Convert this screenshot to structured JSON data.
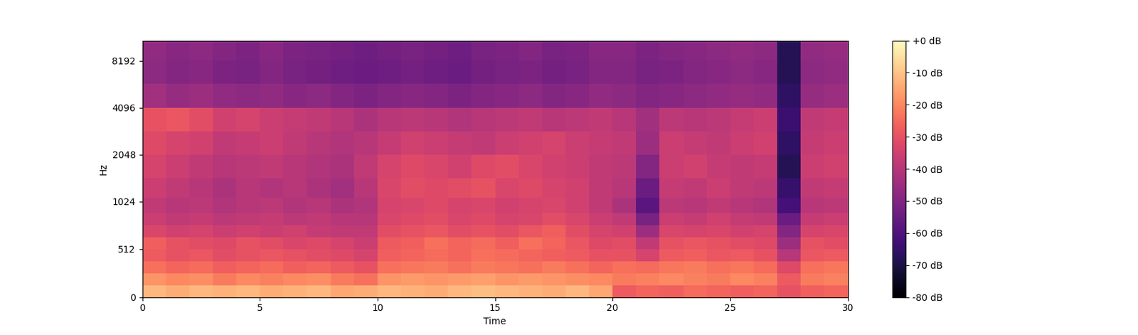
{
  "chart_data": {
    "type": "heatmap",
    "x_label": "Time",
    "y_label": "Hz",
    "x": [
      0.5,
      1.5,
      2.5,
      3.5,
      4.5,
      5.5,
      6.5,
      7.5,
      8.5,
      9.5,
      10.5,
      11.5,
      12.5,
      13.5,
      14.5,
      15.5,
      16.5,
      17.5,
      18.5,
      19.5,
      20.5,
      21.5,
      22.5,
      23.5,
      24.5,
      25.5,
      26.5,
      27.5,
      28.5,
      29.5
    ],
    "y": [
      64,
      192,
      320,
      448,
      576,
      704,
      832,
      960,
      1200,
      1700,
      2400,
      3400,
      4800,
      6800,
      9600
    ],
    "values": [
      [
        -12,
        -14,
        -12,
        -13,
        -12,
        -14,
        -13,
        -12,
        -15,
        -14,
        -12,
        -13,
        -14,
        -12,
        -11,
        -12,
        -13,
        -14,
        -12,
        -15,
        -28,
        -26,
        -27,
        -25,
        -26,
        -27,
        -26,
        -30,
        -27,
        -26
      ],
      [
        -18,
        -20,
        -19,
        -22,
        -20,
        -21,
        -20,
        -19,
        -22,
        -24,
        -18,
        -17,
        -18,
        -17,
        -16,
        -18,
        -17,
        -18,
        -19,
        -20,
        -22,
        -21,
        -20,
        -21,
        -22,
        -20,
        -21,
        -28,
        -22,
        -21
      ],
      [
        -24,
        -26,
        -25,
        -27,
        -26,
        -25,
        -27,
        -26,
        -28,
        -30,
        -24,
        -23,
        -22,
        -24,
        -22,
        -23,
        -24,
        -22,
        -24,
        -26,
        -24,
        -25,
        -23,
        -22,
        -24,
        -23,
        -25,
        -32,
        -24,
        -23
      ],
      [
        -28,
        -30,
        -29,
        -31,
        -30,
        -29,
        -30,
        -31,
        -32,
        -34,
        -27,
        -26,
        -25,
        -26,
        -24,
        -25,
        -26,
        -27,
        -28,
        -30,
        -30,
        -34,
        -28,
        -27,
        -29,
        -28,
        -30,
        -40,
        -29,
        -28
      ],
      [
        -27,
        -30,
        -31,
        -32,
        -30,
        -31,
        -33,
        -32,
        -34,
        -36,
        -28,
        -27,
        -24,
        -26,
        -25,
        -27,
        -24,
        -26,
        -29,
        -32,
        -31,
        -38,
        -30,
        -29,
        -30,
        -31,
        -32,
        -45,
        -30,
        -31
      ],
      [
        -33,
        -35,
        -34,
        -36,
        -35,
        -36,
        -35,
        -37,
        -38,
        -38,
        -31,
        -30,
        -29,
        -31,
        -30,
        -31,
        -29,
        -27,
        -31,
        -34,
        -35,
        -45,
        -33,
        -34,
        -33,
        -35,
        -34,
        -50,
        -34,
        -33
      ],
      [
        -36,
        -38,
        -37,
        -39,
        -38,
        -37,
        -39,
        -38,
        -40,
        -40,
        -33,
        -32,
        -31,
        -33,
        -32,
        -34,
        -33,
        -31,
        -33,
        -36,
        -38,
        -52,
        -36,
        -37,
        -35,
        -37,
        -38,
        -55,
        -37,
        -36
      ],
      [
        -38,
        -40,
        -39,
        -41,
        -40,
        -39,
        -41,
        -40,
        -42,
        -41,
        -34,
        -33,
        -32,
        -34,
        -33,
        -35,
        -34,
        -33,
        -35,
        -38,
        -42,
        -58,
        -39,
        -40,
        -38,
        -40,
        -41,
        -62,
        -40,
        -39
      ],
      [
        -36,
        -38,
        -40,
        -42,
        -40,
        -41,
        -40,
        -42,
        -44,
        -40,
        -33,
        -31,
        -32,
        -31,
        -30,
        -33,
        -32,
        -34,
        -35,
        -38,
        -40,
        -55,
        -37,
        -38,
        -36,
        -38,
        -39,
        -65,
        -38,
        -37
      ],
      [
        -34,
        -36,
        -38,
        -40,
        -39,
        -38,
        -40,
        -41,
        -42,
        -38,
        -34,
        -32,
        -33,
        -35,
        -32,
        -31,
        -33,
        -35,
        -36,
        -38,
        -39,
        -50,
        -36,
        -35,
        -37,
        -38,
        -37,
        -68,
        -36,
        -35
      ],
      [
        -32,
        -34,
        -35,
        -38,
        -37,
        -36,
        -38,
        -40,
        -41,
        -40,
        -37,
        -35,
        -36,
        -37,
        -38,
        -36,
        -35,
        -34,
        -36,
        -37,
        -38,
        -45,
        -36,
        -37,
        -38,
        -36,
        -35,
        -66,
        -37,
        -36
      ],
      [
        -30,
        -29,
        -31,
        -35,
        -34,
        -36,
        -37,
        -38,
        -40,
        -42,
        -40,
        -39,
        -40,
        -41,
        -40,
        -39,
        -38,
        -40,
        -39,
        -38,
        -40,
        -44,
        -39,
        -40,
        -39,
        -37,
        -36,
        -64,
        -38,
        -37
      ],
      [
        -44,
        -46,
        -45,
        -47,
        -48,
        -47,
        -49,
        -48,
        -50,
        -51,
        -50,
        -49,
        -50,
        -51,
        -50,
        -49,
        -48,
        -50,
        -49,
        -47,
        -48,
        -50,
        -49,
        -48,
        -47,
        -46,
        -47,
        -66,
        -46,
        -45
      ],
      [
        -48,
        -50,
        -49,
        -51,
        -52,
        -50,
        -52,
        -53,
        -54,
        -55,
        -54,
        -53,
        -54,
        -55,
        -53,
        -52,
        -51,
        -53,
        -52,
        -50,
        -50,
        -52,
        -51,
        -50,
        -49,
        -48,
        -49,
        -68,
        -48,
        -47
      ],
      [
        -47,
        -49,
        -48,
        -50,
        -51,
        -49,
        -51,
        -52,
        -53,
        -54,
        -53,
        -52,
        -53,
        -54,
        -52,
        -51,
        -50,
        -52,
        -51,
        -49,
        -49,
        -51,
        -50,
        -49,
        -48,
        -47,
        -48,
        -68,
        -47,
        -46
      ]
    ],
    "xlim": [
      0,
      30
    ],
    "xticks": [
      0,
      5,
      10,
      15,
      20,
      25,
      30
    ],
    "ylim": [
      0,
      11025
    ],
    "yticks": [
      0,
      512,
      1024,
      2048,
      4096,
      8192
    ],
    "log": "y",
    "colorbar_range": [
      -80,
      0
    ],
    "colorbar_ticks": [
      {
        "value": 0,
        "label": "+0 dB"
      },
      {
        "value": -10,
        "label": "-10 dB"
      },
      {
        "value": -20,
        "label": "-20 dB"
      },
      {
        "value": -30,
        "label": "-30 dB"
      },
      {
        "value": -40,
        "label": "-40 dB"
      },
      {
        "value": -50,
        "label": "-50 dB"
      },
      {
        "value": -60,
        "label": "-60 dB"
      },
      {
        "value": -70,
        "label": "-70 dB"
      },
      {
        "value": -80,
        "label": "-80 dB"
      }
    ]
  }
}
